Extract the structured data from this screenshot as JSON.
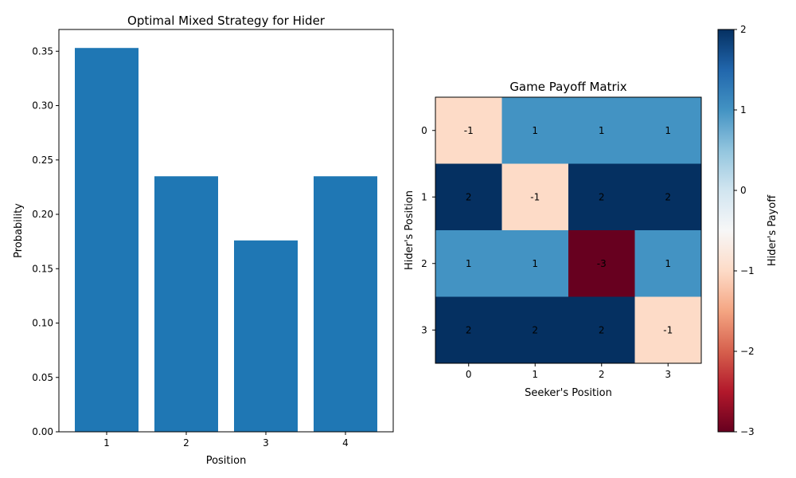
{
  "chart_data": [
    {
      "type": "bar",
      "title": "Optimal Mixed Strategy for Hider",
      "xlabel": "Position",
      "ylabel": "Probability",
      "categories": [
        "1",
        "2",
        "3",
        "4"
      ],
      "values": [
        0.353,
        0.235,
        0.176,
        0.235
      ],
      "ylim": [
        0,
        0.37
      ],
      "yticks": [
        0.0,
        0.05,
        0.1,
        0.15,
        0.2,
        0.25,
        0.3,
        0.35
      ],
      "bar_color": "#1f77b4",
      "grid": false
    },
    {
      "type": "heatmap",
      "title": "Game Payoff Matrix",
      "xlabel": "Seeker's Position",
      "ylabel": "Hider's Position",
      "x": [
        "0",
        "1",
        "2",
        "3"
      ],
      "y": [
        "0",
        "1",
        "2",
        "3"
      ],
      "values": [
        [
          -1,
          1,
          1,
          1
        ],
        [
          2,
          -1,
          2,
          2
        ],
        [
          1,
          1,
          -3,
          1
        ],
        [
          2,
          2,
          2,
          -1
        ]
      ],
      "colormap": "RdBu",
      "colorbar": {
        "label": "Hider's Payoff",
        "range": [
          -3,
          2
        ],
        "ticks": [
          -3,
          -2,
          -1,
          0,
          1,
          2
        ]
      }
    }
  ]
}
